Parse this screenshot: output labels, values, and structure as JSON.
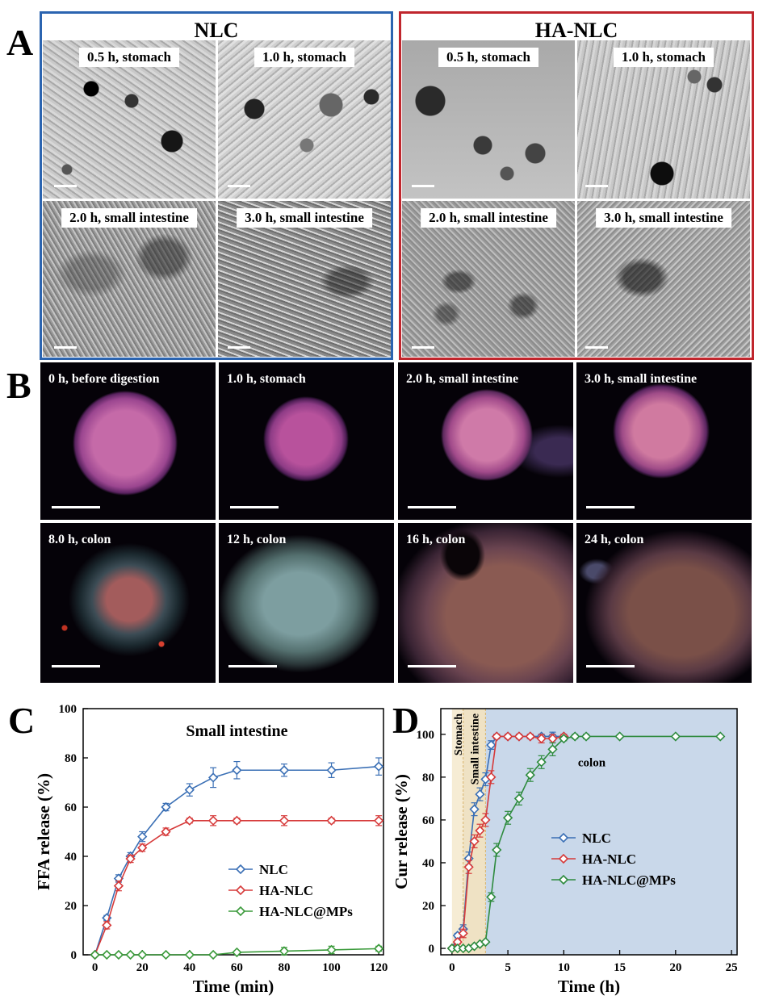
{
  "panels": {
    "a_letter": "A",
    "b_letter": "B",
    "c_letter": "C",
    "d_letter": "D"
  },
  "panel_a": {
    "groups": [
      {
        "title": "NLC",
        "color": "#2b64b0",
        "tiles": [
          "0.5 h, stomach",
          "1.0 h, stomach",
          "2.0 h, small intestine",
          "3.0 h, small intestine"
        ]
      },
      {
        "title": "HA-NLC",
        "color": "#c0262d",
        "tiles": [
          "0.5 h, stomach",
          "1.0 h, stomach",
          "2.0 h, small intestine",
          "3.0 h, small intestine"
        ]
      }
    ]
  },
  "panel_b": {
    "tiles": [
      "0 h, before digestion",
      "1.0 h, stomach",
      "2.0 h, small intestine",
      "3.0 h, small intestine",
      "8.0 h, colon",
      "12 h, colon",
      "16 h, colon",
      "24 h, colon"
    ]
  },
  "chart_data": [
    {
      "type": "line",
      "panel": "C",
      "title": "Small intestine",
      "xlabel": "Time (min)",
      "ylabel": "FFA release (%)",
      "xlim": [
        -5,
        122
      ],
      "ylim": [
        0,
        100
      ],
      "xticks": [
        0,
        20,
        40,
        60,
        80,
        100,
        120
      ],
      "yticks": [
        0,
        20,
        40,
        60,
        80,
        100
      ],
      "legend_position": "bottom-right",
      "series": [
        {
          "name": "NLC",
          "color": "#3a6fb5",
          "x": [
            0,
            5,
            10,
            15,
            20,
            30,
            40,
            50,
            60,
            80,
            100,
            120
          ],
          "y": [
            0,
            15,
            31,
            40,
            48,
            60,
            67,
            72,
            75,
            75,
            75,
            76.5
          ],
          "err": [
            0,
            1,
            1.5,
            1.5,
            2,
            1.5,
            2.5,
            4,
            3.5,
            2.5,
            3,
            3.5
          ]
        },
        {
          "name": "HA-NLC",
          "color": "#d63a3a",
          "x": [
            0,
            5,
            10,
            15,
            20,
            30,
            40,
            50,
            60,
            80,
            100,
            120
          ],
          "y": [
            0,
            12,
            28,
            39,
            43.5,
            50,
            54.5,
            54.5,
            54.5,
            54.5,
            54.5,
            54.5
          ],
          "err": [
            0,
            1.5,
            2,
            1.5,
            1.5,
            1.5,
            1,
            2,
            1,
            2,
            1,
            2
          ]
        },
        {
          "name": "HA-NLC@MPs",
          "color": "#3a9a3a",
          "x": [
            0,
            5,
            10,
            15,
            20,
            30,
            40,
            50,
            60,
            80,
            100,
            120
          ],
          "y": [
            0,
            0,
            0,
            0,
            0,
            0,
            0,
            0,
            1,
            1.5,
            2,
            2.5
          ],
          "err": [
            0,
            0,
            0,
            0,
            0,
            0,
            0,
            0,
            0.5,
            1.5,
            1.5,
            1
          ]
        }
      ]
    },
    {
      "type": "line",
      "panel": "D",
      "xlabel": "Time (h)",
      "ylabel": "Cur release (%)",
      "xlim": [
        -1,
        25.5
      ],
      "ylim": [
        -3,
        112
      ],
      "xticks": [
        0,
        5,
        10,
        15,
        20,
        25
      ],
      "yticks": [
        0,
        20,
        40,
        60,
        80,
        100
      ],
      "legend_position": "center-left",
      "regions": [
        {
          "label": "Stomach",
          "from": 0,
          "to": 1,
          "color": "#f6ecd4"
        },
        {
          "label": "Small intestine",
          "from": 1,
          "to": 3,
          "color": "#efe2c4"
        },
        {
          "label": "colon",
          "from": 3,
          "to": 25.5,
          "color": "#c9d8ea"
        }
      ],
      "series": [
        {
          "name": "NLC",
          "color": "#3a6fb5",
          "x": [
            0,
            0.5,
            1,
            1.5,
            2,
            2.5,
            3,
            3.5,
            4,
            5,
            6,
            7,
            8,
            9,
            10
          ],
          "y": [
            0,
            6,
            9,
            42,
            65,
            72,
            79,
            95,
            99,
            99,
            99,
            99,
            99,
            99,
            99
          ],
          "err": [
            0,
            1,
            2,
            3,
            3,
            3,
            3,
            2,
            1,
            1,
            1,
            1,
            1,
            2,
            1
          ]
        },
        {
          "name": "HA-NLC",
          "color": "#d63a3a",
          "x": [
            0,
            0.5,
            1,
            1.5,
            2,
            2.5,
            3,
            3.5,
            4,
            5,
            6,
            7,
            8,
            9,
            10
          ],
          "y": [
            0,
            3,
            7,
            38,
            50,
            55,
            60,
            80,
            99,
            99,
            99,
            99,
            98,
            98,
            99
          ],
          "err": [
            0,
            1,
            2,
            3,
            3,
            3,
            3,
            3,
            1,
            1,
            1,
            1,
            2,
            2,
            1
          ]
        },
        {
          "name": "HA-NLC@MPs",
          "color": "#2e8b3e",
          "x": [
            0,
            0.5,
            1,
            1.5,
            2,
            2.5,
            3,
            3.5,
            4,
            5,
            6,
            7,
            8,
            9,
            10,
            11,
            12,
            15,
            20,
            24
          ],
          "y": [
            0,
            0,
            0,
            0,
            1,
            2,
            3,
            24,
            46,
            61,
            70,
            81,
            87,
            93,
            98,
            99,
            99,
            99,
            99,
            99
          ],
          "err": [
            0,
            0,
            0,
            0,
            0,
            0,
            0,
            2,
            3,
            3,
            3,
            3,
            3,
            3,
            1,
            1,
            1,
            0.5,
            0.5,
            0.5
          ]
        }
      ]
    }
  ]
}
